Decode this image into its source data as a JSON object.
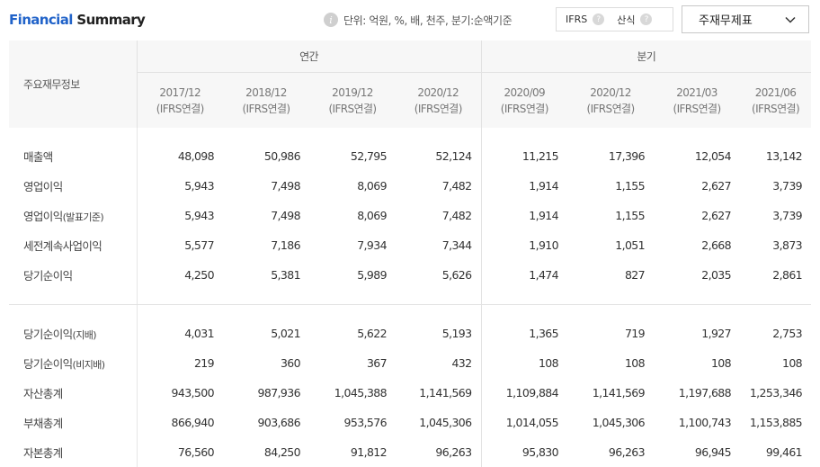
{
  "header": {
    "title_highlight": "Financial",
    "title_rest": " Summary",
    "info_icon": "info-icon",
    "unit_text": "단위: 억원, %, 배, 천주, 분기:순액기준",
    "options": [
      {
        "label": "IFRS",
        "help": "?"
      },
      {
        "label": "산식",
        "help": "?"
      }
    ],
    "select_value": "주재무제표"
  },
  "table": {
    "row_header": "주요재무정보",
    "groups": {
      "annual": "연간",
      "quarterly": "분기"
    },
    "periods": [
      {
        "date": "2017/12",
        "basis": "(IFRS연결)"
      },
      {
        "date": "2018/12",
        "basis": "(IFRS연결)"
      },
      {
        "date": "2019/12",
        "basis": "(IFRS연결)"
      },
      {
        "date": "2020/12",
        "basis": "(IFRS연결)"
      },
      {
        "date": "2020/09",
        "basis": "(IFRS연결)"
      },
      {
        "date": "2020/12",
        "basis": "(IFRS연결)"
      },
      {
        "date": "2021/03",
        "basis": "(IFRS연결)"
      },
      {
        "date": "2021/06",
        "basis": "(IFRS연결)"
      }
    ],
    "rows_group1": [
      {
        "label": "매출액",
        "sub": "",
        "values": [
          "48,098",
          "50,986",
          "52,795",
          "52,124",
          "11,215",
          "17,396",
          "12,054",
          "13,142"
        ]
      },
      {
        "label": "영업이익",
        "sub": "",
        "values": [
          "5,943",
          "7,498",
          "8,069",
          "7,482",
          "1,914",
          "1,155",
          "2,627",
          "3,739"
        ]
      },
      {
        "label": "영업이익",
        "sub": "(발표기준)",
        "values": [
          "5,943",
          "7,498",
          "8,069",
          "7,482",
          "1,914",
          "1,155",
          "2,627",
          "3,739"
        ]
      },
      {
        "label": "세전계속사업이익",
        "sub": "",
        "values": [
          "5,577",
          "7,186",
          "7,934",
          "7,344",
          "1,910",
          "1,051",
          "2,668",
          "3,873"
        ]
      },
      {
        "label": "당기순이익",
        "sub": "",
        "values": [
          "4,250",
          "5,381",
          "5,989",
          "5,626",
          "1,474",
          "827",
          "2,035",
          "2,861"
        ]
      }
    ],
    "rows_group2": [
      {
        "label": "당기순이익",
        "sub": "(지배)",
        "values": [
          "4,031",
          "5,021",
          "5,622",
          "5,193",
          "1,365",
          "719",
          "1,927",
          "2,753"
        ]
      },
      {
        "label": "당기순이익",
        "sub": "(비지배)",
        "values": [
          "219",
          "360",
          "367",
          "432",
          "108",
          "108",
          "108",
          "108"
        ]
      },
      {
        "label": "자산총계",
        "sub": "",
        "values": [
          "943,500",
          "987,936",
          "1,045,388",
          "1,141,569",
          "1,109,884",
          "1,141,569",
          "1,197,688",
          "1,253,346"
        ]
      },
      {
        "label": "부채총계",
        "sub": "",
        "values": [
          "866,940",
          "903,686",
          "953,576",
          "1,045,306",
          "1,014,055",
          "1,045,306",
          "1,100,743",
          "1,153,885"
        ]
      },
      {
        "label": "자본총계",
        "sub": "",
        "values": [
          "76,560",
          "84,250",
          "91,812",
          "96,263",
          "95,830",
          "96,263",
          "96,945",
          "99,461"
        ]
      }
    ]
  }
}
